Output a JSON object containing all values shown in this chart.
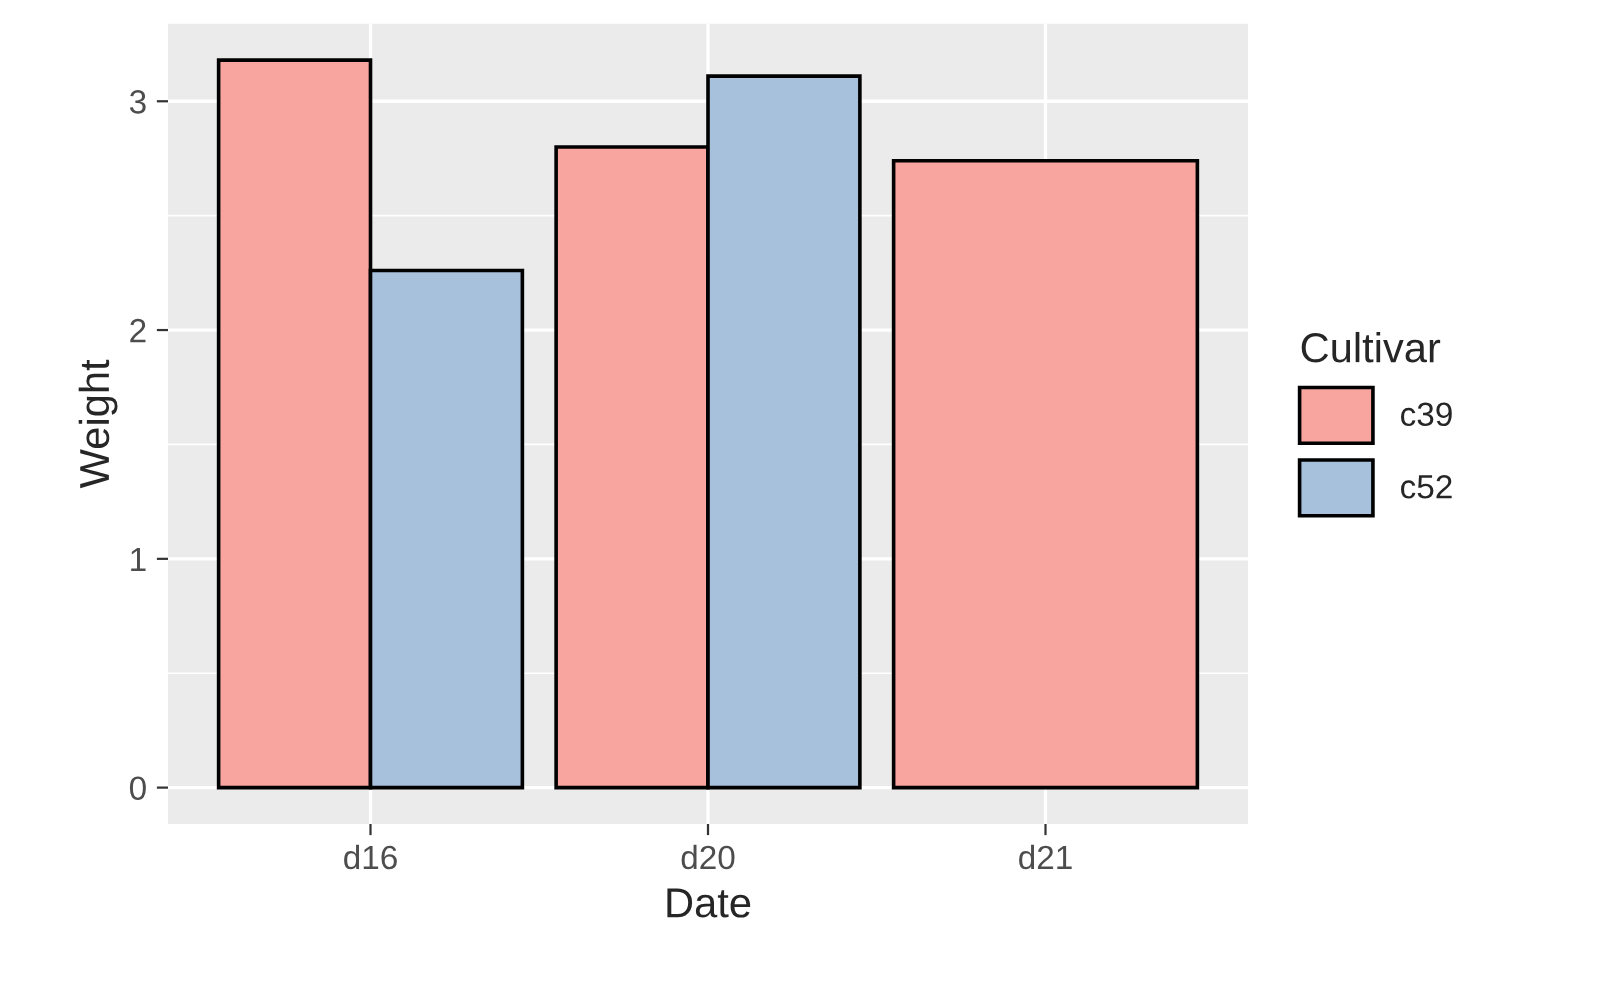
{
  "chart_data": {
    "type": "bar",
    "xlabel": "Date",
    "ylabel": "Weight",
    "legend_title": "Cultivar",
    "categories": [
      "d16",
      "d20",
      "d21"
    ],
    "series": [
      {
        "name": "c39",
        "color": "#f8a5a0",
        "values": [
          3.18,
          2.8,
          2.74
        ]
      },
      {
        "name": "c52",
        "color": "#a7c1dc",
        "values": [
          2.26,
          3.11,
          null
        ]
      }
    ],
    "ylim": [
      -0.159,
      3.339
    ],
    "yticks": [
      0,
      1,
      2,
      3
    ],
    "grid": true,
    "legend": "right"
  }
}
